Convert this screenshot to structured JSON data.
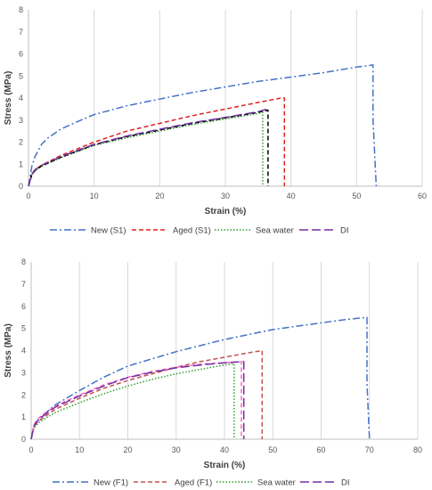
{
  "chart_data": [
    {
      "type": "line",
      "xlabel": "Strain (%)",
      "ylabel": "Stress (MPa)",
      "xlim": [
        0,
        60
      ],
      "ylim": [
        0,
        8
      ],
      "xticks": [
        0,
        10,
        20,
        30,
        40,
        50,
        60
      ],
      "yticks": [
        0,
        1,
        2,
        3,
        4,
        5,
        6,
        7,
        8
      ],
      "grid": "vertical",
      "legend": "bottom",
      "series": [
        {
          "name": "New (S1)",
          "color": "#4472c4",
          "dash": "dashdot",
          "x": [
            0,
            0.5,
            1,
            2,
            3,
            5,
            8,
            10,
            15,
            20,
            25,
            30,
            35,
            40,
            45,
            50,
            52.5,
            52.5,
            53
          ],
          "y": [
            0,
            0.9,
            1.35,
            1.9,
            2.2,
            2.6,
            3.0,
            3.25,
            3.65,
            3.95,
            4.25,
            4.5,
            4.75,
            4.95,
            5.15,
            5.4,
            5.5,
            3.0,
            0
          ]
        },
        {
          "name": "Aged (S1)",
          "color": "#e02020",
          "dash": "dashed",
          "x": [
            0,
            0.5,
            1,
            2,
            5,
            10,
            15,
            20,
            25,
            30,
            35,
            38.5,
            39,
            39
          ],
          "y": [
            0,
            0.55,
            0.75,
            0.95,
            1.4,
            2.0,
            2.5,
            2.85,
            3.2,
            3.5,
            3.8,
            4.0,
            4.0,
            0
          ]
        },
        {
          "name": "Sea water",
          "color": "#2e9e2e",
          "dash": "dotted",
          "x": [
            0,
            0.5,
            1,
            2,
            5,
            10,
            15,
            20,
            25,
            30,
            35,
            35.7,
            35.7
          ],
          "y": [
            0,
            0.5,
            0.7,
            0.9,
            1.3,
            1.85,
            2.2,
            2.5,
            2.8,
            3.05,
            3.3,
            3.35,
            0
          ]
        },
        {
          "name": "",
          "color": "#000000",
          "dash": "dashed",
          "x": [
            0,
            0.5,
            1,
            2,
            5,
            10,
            15,
            20,
            25,
            30,
            35,
            36.5,
            36.5
          ],
          "y": [
            0,
            0.52,
            0.72,
            0.92,
            1.32,
            1.88,
            2.25,
            2.55,
            2.85,
            3.1,
            3.35,
            3.45,
            0
          ]
        },
        {
          "name": "DI",
          "color": "#7030a0",
          "dash": "longdash",
          "x": [
            0,
            0.5,
            1,
            2,
            5,
            10,
            15,
            20,
            25,
            30,
            35,
            36.2,
            36.3
          ],
          "y": [
            0,
            0.55,
            0.75,
            0.95,
            1.35,
            1.9,
            2.28,
            2.58,
            2.88,
            3.12,
            3.38,
            3.48,
            3.45
          ]
        }
      ]
    },
    {
      "type": "line",
      "xlabel": "Strain (%)",
      "ylabel": "Stress (MPa)",
      "xlim": [
        0,
        80
      ],
      "ylim": [
        0,
        8
      ],
      "xticks": [
        0,
        10,
        20,
        30,
        40,
        50,
        60,
        70,
        80
      ],
      "yticks": [
        0,
        1,
        2,
        3,
        4,
        5,
        6,
        7,
        8
      ],
      "grid": "vertical",
      "legend": "bottom",
      "series": [
        {
          "name": "New (F1)",
          "color": "#4472c4",
          "dash": "dashdot",
          "x": [
            0,
            0.5,
            1,
            2,
            5,
            10,
            15,
            20,
            30,
            40,
            50,
            60,
            65,
            69.5,
            69.5,
            70
          ],
          "y": [
            0,
            0.55,
            0.75,
            1.0,
            1.55,
            2.2,
            2.8,
            3.3,
            3.95,
            4.5,
            4.95,
            5.25,
            5.4,
            5.5,
            2.5,
            0
          ]
        },
        {
          "name": "Aged (F1)",
          "color": "#c0504d",
          "dash": "dashed",
          "x": [
            0,
            0.5,
            1,
            2,
            5,
            10,
            15,
            20,
            25,
            30,
            35,
            40,
            45,
            47.8,
            47.8
          ],
          "y": [
            0,
            0.5,
            0.7,
            0.9,
            1.35,
            1.85,
            2.3,
            2.65,
            2.95,
            3.25,
            3.5,
            3.7,
            3.9,
            4.0,
            0
          ]
        },
        {
          "name": "Sea water",
          "color": "#2e9e2e",
          "dash": "dotted",
          "x": [
            0,
            0.5,
            1,
            2,
            5,
            10,
            15,
            20,
            25,
            30,
            35,
            40,
            42,
            42
          ],
          "y": [
            0,
            0.45,
            0.62,
            0.82,
            1.2,
            1.65,
            2.05,
            2.4,
            2.7,
            2.95,
            3.15,
            3.35,
            3.4,
            0
          ]
        },
        {
          "name": "",
          "color": "#ff66cc",
          "dash": "dashed",
          "x": [
            0,
            0.5,
            1,
            2,
            5,
            10,
            15,
            20,
            25,
            30,
            35,
            40,
            43.5,
            43.5
          ],
          "y": [
            0,
            0.6,
            0.82,
            1.05,
            1.5,
            2.0,
            2.45,
            2.8,
            3.05,
            3.25,
            3.38,
            3.45,
            3.5,
            0
          ]
        },
        {
          "name": "DI",
          "color": "#7030a0",
          "dash": "longdash",
          "x": [
            0,
            0.5,
            1,
            2,
            5,
            10,
            15,
            20,
            25,
            30,
            35,
            40,
            44,
            44
          ],
          "y": [
            0,
            0.55,
            0.75,
            0.98,
            1.45,
            1.95,
            2.4,
            2.78,
            3.02,
            3.22,
            3.35,
            3.45,
            3.5,
            0
          ]
        }
      ]
    }
  ]
}
